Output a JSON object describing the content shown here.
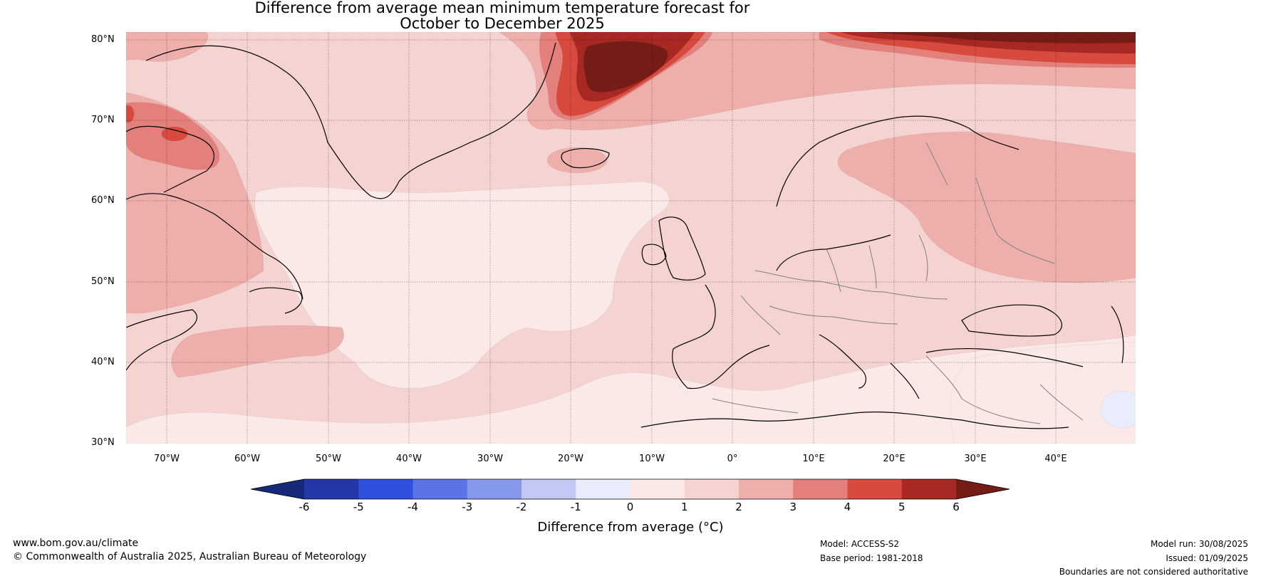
{
  "title_line1": "Difference from average mean minimum temperature forecast for",
  "title_line2": "October to December 2025",
  "lat_labels": [
    "80°N",
    "70°N",
    "60°N",
    "50°N",
    "40°N",
    "30°N"
  ],
  "lon_labels": [
    "70°W",
    "60°W",
    "50°W",
    "40°W",
    "30°W",
    "20°W",
    "10°W",
    "0°",
    "10°E",
    "20°E",
    "30°E",
    "40°E"
  ],
  "colorbar": {
    "ticks": [
      "-6",
      "-5",
      "-4",
      "-3",
      "-2",
      "-1",
      "0",
      "1",
      "2",
      "3",
      "4",
      "5",
      "6"
    ],
    "colors": [
      "#2337a8",
      "#2e50dd",
      "#5b74e5",
      "#8598ea",
      "#c0c8f3",
      "#e8ecfb",
      "#fbe9e7",
      "#f4d3d0",
      "#eeafac",
      "#e4807b",
      "#d8493e",
      "#a82824"
    ],
    "under_color": "#182878",
    "over_color": "#761c16",
    "label": "Difference from average (°C)"
  },
  "map_colors": {
    "bin_0_1": "#fbe9e7",
    "bin_1_2": "#f4d3d0",
    "bin_2_3": "#eeafac",
    "bin_3_4": "#e4807b",
    "bin_4_5": "#d8493e",
    "bin_5_6": "#a82824",
    "bin_over_6": "#761c16",
    "bin_minus1_0": "#e8ecfb"
  },
  "footer": {
    "website": "www.bom.gov.au/climate",
    "copyright": "© Commonwealth of Australia 2025, Australian Bureau of Meteorology",
    "model": "Model: ACCESS-S2",
    "base_period": "Base period: 1981-2018",
    "model_run": "Model run: 30/08/2025",
    "issued": "Issued: 01/09/2025",
    "disclaimer": "Boundaries are not considered authoritative"
  }
}
